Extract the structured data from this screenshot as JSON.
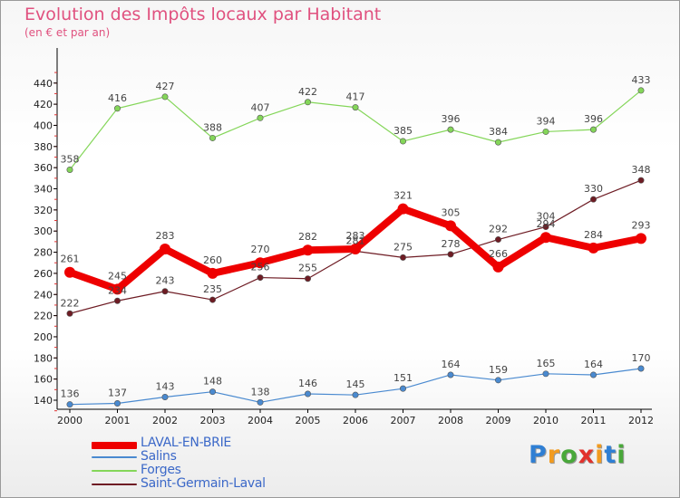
{
  "header": {
    "title": "Evolution des Impôts locaux par Habitant",
    "subtitle": "(en € et par an)"
  },
  "brand": {
    "letters": [
      "P",
      "r",
      "o",
      "x",
      "i",
      "t",
      "i"
    ],
    "colors": [
      "#2f7fd4",
      "#f29b1f",
      "#49a83a",
      "#e2312c",
      "#f29b1f",
      "#2f7fd4",
      "#49a83a"
    ]
  },
  "chart_data": {
    "type": "line",
    "title": "Evolution des Impôts locaux par Habitant",
    "subtitle": "(en € et par an)",
    "xlabel": "",
    "ylabel": "",
    "ylim": [
      120,
      440
    ],
    "yticks": [
      140,
      160,
      180,
      200,
      220,
      240,
      260,
      280,
      300,
      320,
      340,
      360,
      380,
      400,
      420,
      440
    ],
    "grid": false,
    "legend_position": "bottom-left",
    "categories": [
      "2000",
      "2001",
      "2002",
      "2003",
      "2004",
      "2005",
      "2006",
      "2007",
      "2008",
      "2009",
      "2010",
      "2011",
      "2012"
    ],
    "series": [
      {
        "name": "LAVAL-EN-BRIE",
        "color": "#ee0000",
        "values": [
          261,
          245,
          283,
          260,
          270,
          282,
          283,
          321,
          305,
          266,
          294,
          284,
          293
        ]
      },
      {
        "name": "Salins",
        "color": "#4a8ad0",
        "values": [
          136,
          137,
          143,
          148,
          138,
          146,
          145,
          151,
          164,
          159,
          165,
          164,
          170
        ]
      },
      {
        "name": "Forges",
        "color": "#84d659",
        "values": [
          358,
          416,
          427,
          388,
          407,
          422,
          417,
          385,
          396,
          384,
          394,
          396,
          433
        ]
      },
      {
        "name": "Saint-Germain-Laval",
        "color": "#6e1c24",
        "values": [
          222,
          234,
          243,
          235,
          256,
          255,
          281,
          275,
          278,
          292,
          304,
          330,
          348
        ]
      }
    ]
  }
}
